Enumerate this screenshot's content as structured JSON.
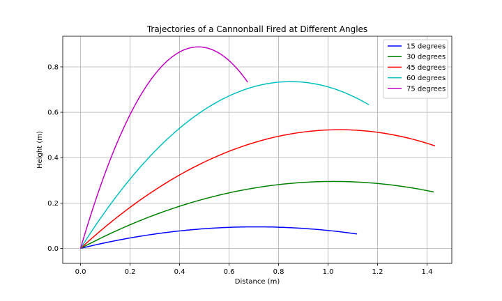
{
  "chart_data": {
    "type": "line",
    "title": "Trajectories of a Cannonball Fired at Different Angles",
    "xlabel": "Distance (m)",
    "ylabel": "Height (m)",
    "xlim": [
      -0.072,
      1.5
    ],
    "ylim": [
      -0.066,
      0.935
    ],
    "xticks": [
      "0.0",
      "0.2",
      "0.4",
      "0.6",
      "0.8",
      "1.0",
      "1.2",
      "1.4"
    ],
    "yticks": [
      "0.0",
      "0.2",
      "0.4",
      "0.6",
      "0.8"
    ],
    "grid": true,
    "legend_position": "top-right",
    "series": [
      {
        "name": "15 degrees",
        "color": "#0000ff",
        "angle_deg": 15,
        "range": 1.117,
        "max_height": 0.095
      },
      {
        "name": "30 degrees",
        "color": "#008000",
        "angle_deg": 30,
        "range": 1.427,
        "max_height": 0.295
      },
      {
        "name": "45 degrees",
        "color": "#ff0000",
        "angle_deg": 45,
        "range": 1.432,
        "max_height": 0.523
      },
      {
        "name": "60 degrees",
        "color": "#00bfbf",
        "angle_deg": 60,
        "range": 1.165,
        "max_height": 0.735
      },
      {
        "name": "75 degrees",
        "color": "#bf00bf",
        "angle_deg": 75,
        "range": 0.675,
        "max_height": 0.888
      }
    ]
  }
}
